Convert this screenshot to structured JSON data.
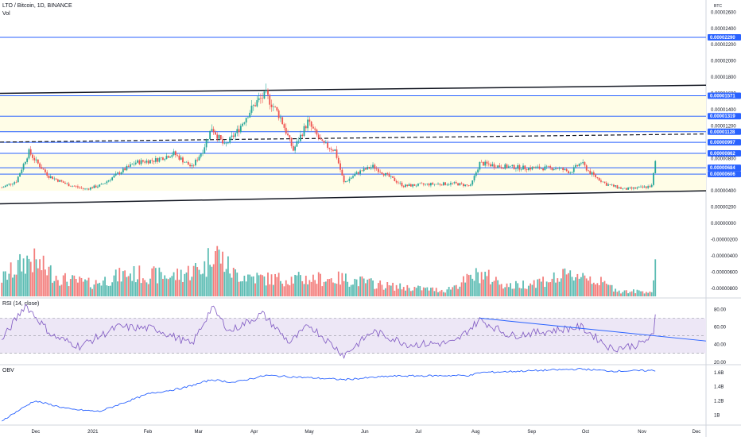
{
  "header": {
    "symbol": "LTO / Bitcoin, 1D, BINANCE",
    "volume_label": "Vol",
    "currency": "BTC"
  },
  "rsi_label": "RSI (14, close)",
  "obv_label": "OBV",
  "colors": {
    "up": "#26a69a",
    "down": "#ef5350",
    "band_fill": "#fffde7",
    "hline": "#2962ff",
    "rsi_line": "#7e57c2",
    "rsi_band": "#ede7f6",
    "obv_line": "#2962ff"
  },
  "price_axis": {
    "ticks": [
      "0.00002600",
      "0.00002400",
      "0.00002200",
      "0.00002000",
      "0.00001800",
      "0.00001600",
      "0.00001400",
      "0.00001200",
      "0.00001000",
      "0.00000800",
      "0.00000600",
      "0.00000400",
      "0.00000200",
      "0.00000000",
      "-0.00000200",
      "-0.00000400",
      "-0.00000600",
      "-0.00000800"
    ],
    "badges": [
      "0.00002290",
      "0.00001571",
      "0.00001319",
      "0.00001128",
      "0.00000997",
      "0.00000862",
      "0.00000684",
      "0.00000606"
    ]
  },
  "rsi_axis": {
    "ticks": [
      "80.00",
      "60.00",
      "40.00",
      "20.00"
    ]
  },
  "obv_axis": {
    "ticks": [
      "1.6B",
      "1.4B",
      "1.2B",
      "1B"
    ]
  },
  "time_axis": {
    "labels": [
      "Dec",
      "2021",
      "Feb",
      "Mar",
      "Apr",
      "May",
      "Jun",
      "Jul",
      "Aug",
      "Sep",
      "Oct",
      "Nov",
      "Dec"
    ]
  },
  "chart_data": {
    "type": "candlestick",
    "symbol": "LTO / Bitcoin",
    "interval": "1D",
    "exchange": "BINANCE",
    "price_ylim": [
      -9e-06,
      2.75e-05
    ],
    "horizontal_levels": [
      2.29e-05,
      1.571e-05,
      1.319e-05,
      1.128e-05,
      9.97e-06,
      8.62e-06,
      6.84e-06,
      6.06e-06
    ],
    "price_anchors": [
      [
        "2020-11-12",
        4.4e-06
      ],
      [
        "2020-11-20",
        5.2e-06
      ],
      [
        "2020-11-27",
        8.8e-06
      ],
      [
        "2020-12-01",
        7.6e-06
      ],
      [
        "2020-12-08",
        5.8e-06
      ],
      [
        "2020-12-18",
        4.8e-06
      ],
      [
        "2020-12-28",
        4.2e-06
      ],
      [
        "2021-01-06",
        4.7e-06
      ],
      [
        "2021-01-15",
        6.1e-06
      ],
      [
        "2021-01-25",
        7.5e-06
      ],
      [
        "2021-02-05",
        7.8e-06
      ],
      [
        "2021-02-15",
        8.6e-06
      ],
      [
        "2021-02-25",
        6.9e-06
      ],
      [
        "2021-03-03",
        9e-06
      ],
      [
        "2021-03-08",
        1.18e-05
      ],
      [
        "2021-03-15",
        9.5e-06
      ],
      [
        "2021-03-22",
        1.13e-05
      ],
      [
        "2021-03-28",
        1.35e-05
      ],
      [
        "2021-04-02",
        1.5e-05
      ],
      [
        "2021-04-07",
        1.58e-05
      ],
      [
        "2021-04-15",
        1.3e-05
      ],
      [
        "2021-04-22",
        9e-06
      ],
      [
        "2021-04-30",
        1.25e-05
      ],
      [
        "2021-05-08",
        9.8e-06
      ],
      [
        "2021-05-15",
        9e-06
      ],
      [
        "2021-05-20",
        5e-06
      ],
      [
        "2021-05-28",
        6.3e-06
      ],
      [
        "2021-06-05",
        7e-06
      ],
      [
        "2021-06-12",
        6e-06
      ],
      [
        "2021-06-22",
        4.6e-06
      ],
      [
        "2021-07-05",
        4.8e-06
      ],
      [
        "2021-07-20",
        4.9e-06
      ],
      [
        "2021-07-29",
        4.6e-06
      ],
      [
        "2021-08-03",
        7.4e-06
      ],
      [
        "2021-08-15",
        7e-06
      ],
      [
        "2021-08-30",
        6.8e-06
      ],
      [
        "2021-09-15",
        6.8e-06
      ],
      [
        "2021-09-22",
        6.3e-06
      ],
      [
        "2021-09-28",
        7.5e-06
      ],
      [
        "2021-10-03",
        6.2e-06
      ],
      [
        "2021-10-12",
        4.8e-06
      ],
      [
        "2021-10-22",
        4.2e-06
      ],
      [
        "2021-11-01",
        4.4e-06
      ],
      [
        "2021-11-06",
        4.6e-06
      ],
      [
        "2021-11-08",
        7.5e-06
      ]
    ],
    "volume_anchors": [
      [
        "2020-11-12",
        0.35
      ],
      [
        "2020-11-27",
        0.75
      ],
      [
        "2020-12-15",
        0.35
      ],
      [
        "2021-01-01",
        0.25
      ],
      [
        "2021-01-20",
        0.45
      ],
      [
        "2021-02-15",
        0.4
      ],
      [
        "2021-03-05",
        0.6
      ],
      [
        "2021-03-08",
        1.0
      ],
      [
        "2021-03-20",
        0.45
      ],
      [
        "2021-04-07",
        0.35
      ],
      [
        "2021-05-01",
        0.35
      ],
      [
        "2021-05-20",
        0.35
      ],
      [
        "2021-06-15",
        0.2
      ],
      [
        "2021-07-15",
        0.12
      ],
      [
        "2021-08-03",
        0.45
      ],
      [
        "2021-08-20",
        0.2
      ],
      [
        "2021-09-28",
        0.45
      ],
      [
        "2021-10-20",
        0.1
      ],
      [
        "2021-11-06",
        0.1
      ],
      [
        "2021-11-08",
        0.6
      ]
    ],
    "rsi": {
      "ylim": [
        18,
        92
      ],
      "overbought": 70,
      "oversold": 30,
      "anchors": [
        [
          "2020-11-12",
          45
        ],
        [
          "2020-11-25",
          85
        ],
        [
          "2020-12-10",
          50
        ],
        [
          "2020-12-25",
          38
        ],
        [
          "2021-01-15",
          60
        ],
        [
          "2021-02-05",
          58
        ],
        [
          "2021-02-25",
          40
        ],
        [
          "2021-03-08",
          82
        ],
        [
          "2021-03-18",
          55
        ],
        [
          "2021-04-05",
          75
        ],
        [
          "2021-04-20",
          42
        ],
        [
          "2021-05-01",
          62
        ],
        [
          "2021-05-20",
          28
        ],
        [
          "2021-06-05",
          55
        ],
        [
          "2021-06-25",
          40
        ],
        [
          "2021-07-20",
          42
        ],
        [
          "2021-08-03",
          68
        ],
        [
          "2021-08-20",
          50
        ],
        [
          "2021-09-28",
          60
        ],
        [
          "2021-10-15",
          35
        ],
        [
          "2021-10-30",
          40
        ],
        [
          "2021-11-07",
          50
        ],
        [
          "2021-11-08",
          72
        ]
      ]
    },
    "obv": {
      "ylim": [
        0.88,
        1.7
      ],
      "anchors": [
        [
          "2020-11-12",
          0.92
        ],
        [
          "2020-11-30",
          1.2
        ],
        [
          "2020-12-20",
          1.08
        ],
        [
          "2021-01-05",
          1.05
        ],
        [
          "2021-02-01",
          1.3
        ],
        [
          "2021-02-20",
          1.38
        ],
        [
          "2021-03-08",
          1.5
        ],
        [
          "2021-03-20",
          1.46
        ],
        [
          "2021-04-07",
          1.56
        ],
        [
          "2021-05-20",
          1.5
        ],
        [
          "2021-06-15",
          1.55
        ],
        [
          "2021-07-29",
          1.56
        ],
        [
          "2021-08-03",
          1.6
        ],
        [
          "2021-09-28",
          1.65
        ],
        [
          "2021-10-15",
          1.62
        ],
        [
          "2021-11-08",
          1.63
        ]
      ]
    },
    "x_range": [
      "2020-11-11",
      "2021-12-06"
    ]
  }
}
